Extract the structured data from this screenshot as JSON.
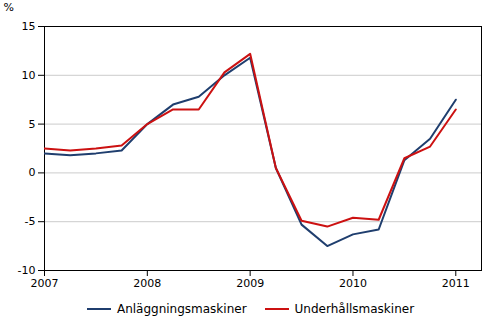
{
  "chart_data": {
    "type": "line",
    "ylabel": "%",
    "x": [
      2007.0,
      2007.25,
      2007.5,
      2007.75,
      2008.0,
      2008.25,
      2008.5,
      2008.75,
      2009.0,
      2009.25,
      2009.5,
      2009.75,
      2010.0,
      2010.25,
      2010.5,
      2010.75,
      2011.0
    ],
    "series": [
      {
        "name": "Anläggningsmaskiner",
        "color": "#1f3e6e",
        "values": [
          2.0,
          1.8,
          2.0,
          2.3,
          5.0,
          7.0,
          7.8,
          10.0,
          11.8,
          0.5,
          -5.3,
          -7.5,
          -6.3,
          -5.8,
          1.3,
          3.5,
          7.5
        ]
      },
      {
        "name": "Underhållsmaskiner",
        "color": "#cc1111",
        "values": [
          2.5,
          2.3,
          2.5,
          2.8,
          5.0,
          6.5,
          6.5,
          10.3,
          12.2,
          0.5,
          -4.9,
          -5.5,
          -4.6,
          -4.8,
          1.5,
          2.7,
          6.5
        ]
      }
    ],
    "xlim": [
      2007.0,
      2011.25
    ],
    "xticks": [
      2007,
      2008,
      2009,
      2010,
      2011
    ],
    "ylim": [
      -10,
      15
    ],
    "yticks": [
      -10,
      -5,
      0,
      5,
      10,
      15
    ],
    "grid": "y",
    "legend": "bottom"
  }
}
